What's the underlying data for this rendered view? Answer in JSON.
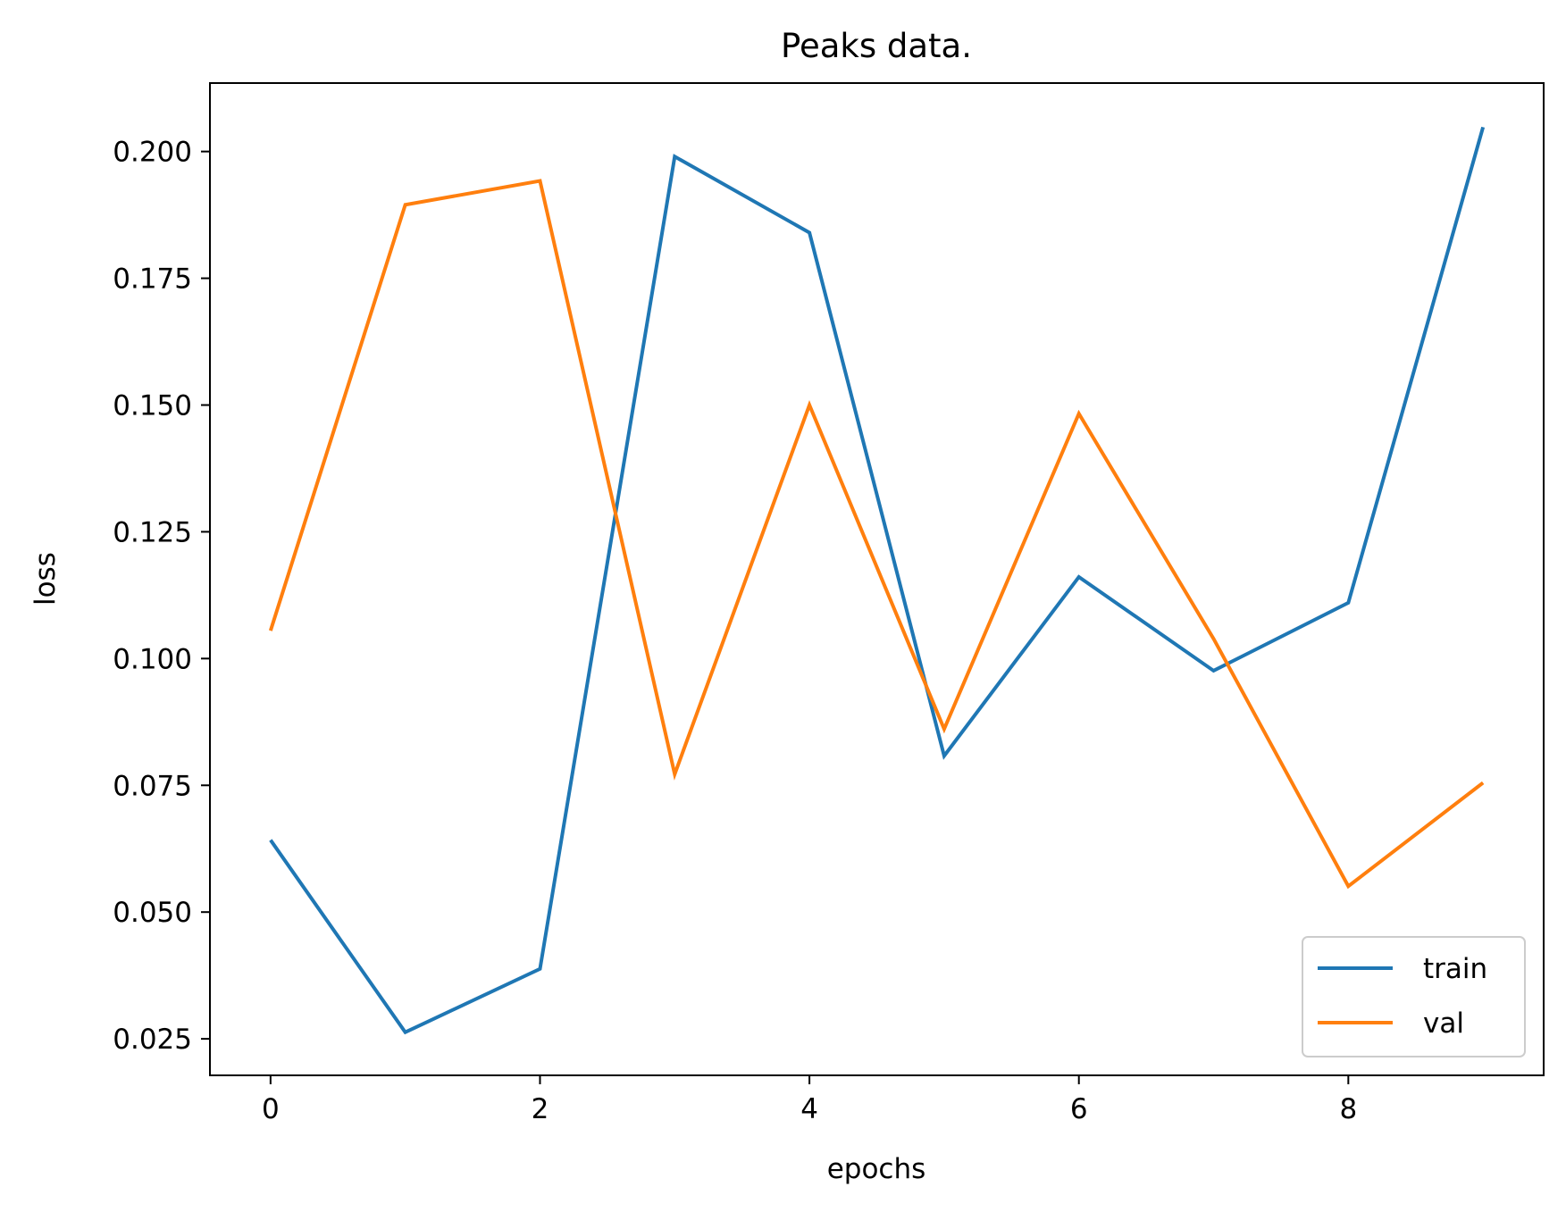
{
  "chart_data": {
    "type": "line",
    "title": "Peaks data.",
    "xlabel": "epochs",
    "ylabel": "loss",
    "x": [
      0,
      1,
      2,
      3,
      4,
      5,
      6,
      7,
      8,
      9
    ],
    "xticks": [
      0,
      2,
      4,
      6,
      8
    ],
    "xtick_labels": [
      "0",
      "2",
      "4",
      "6",
      "8"
    ],
    "yticks": [
      0.025,
      0.05,
      0.075,
      0.1,
      0.125,
      0.15,
      0.175,
      0.2
    ],
    "ytick_labels": [
      "0.025",
      "0.050",
      "0.075",
      "0.100",
      "0.125",
      "0.150",
      "0.175",
      "0.200"
    ],
    "xlim": [
      -0.45,
      9.45
    ],
    "ylim": [
      0.0178,
      0.2135
    ],
    "grid": false,
    "legend_position": "lower-right",
    "series": [
      {
        "name": "train",
        "color": "#1f77b4",
        "values": [
          0.0642,
          0.0263,
          0.0388,
          0.199,
          0.184,
          0.0808,
          0.1161,
          0.0976,
          0.111,
          0.2048
        ]
      },
      {
        "name": "val",
        "color": "#ff7f0e",
        "values": [
          0.1055,
          0.1895,
          0.1942,
          0.0772,
          0.15,
          0.0861,
          0.1483,
          0.1039,
          0.0551,
          0.0755
        ]
      }
    ]
  }
}
